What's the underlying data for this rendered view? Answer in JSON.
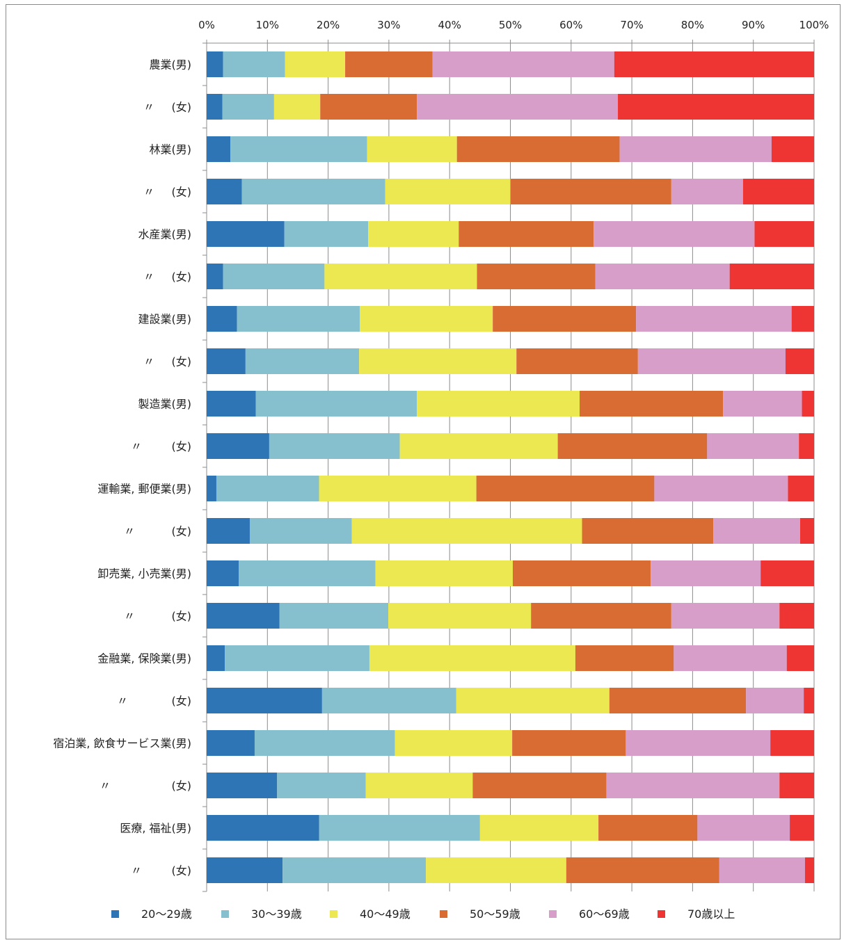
{
  "chart_data": {
    "type": "bar",
    "orientation": "horizontal",
    "stacked": "percent",
    "x_ticks": [
      "0%",
      "10%",
      "20%",
      "30%",
      "40%",
      "50%",
      "60%",
      "70%",
      "80%",
      "90%",
      "100%"
    ],
    "xlim": [
      0,
      100
    ],
    "grid": true,
    "legend_position": "bottom",
    "categories": [
      {
        "main": "農業(男)"
      },
      {
        "mark": "〃",
        "paren": "(女)",
        "gap": 0
      },
      {
        "main": "林業(男)"
      },
      {
        "mark": "〃",
        "paren": "(女)",
        "gap": 0
      },
      {
        "main": "水産業(男)"
      },
      {
        "mark": "〃",
        "paren": "(女)",
        "gap": 0
      },
      {
        "main": "建設業(男)"
      },
      {
        "mark": "〃",
        "paren": "(女)",
        "gap": 0
      },
      {
        "main": "製造業(男)"
      },
      {
        "mark": "〃",
        "paren": "(女)",
        "gap": 1
      },
      {
        "main": "運輸業, 郵便業(男)"
      },
      {
        "mark": "〃",
        "paren": "(女)",
        "gap": 2
      },
      {
        "main": "卸売業, 小売業(男)"
      },
      {
        "mark": "〃",
        "paren": "(女)",
        "gap": 2
      },
      {
        "main": "金融業, 保険業(男)"
      },
      {
        "mark": "〃",
        "paren": "(女)",
        "gap": 3
      },
      {
        "main": "宿泊業, 飲食サービス業(男)"
      },
      {
        "mark": "〃",
        "paren": "(女)",
        "gap": 4
      },
      {
        "main": "医療, 福祉(男)"
      },
      {
        "mark": "〃",
        "paren": "(女)",
        "gap": 1
      }
    ],
    "series": [
      {
        "name": "20〜29歳",
        "color": "#2e75b6",
        "values": [
          2.7,
          2.6,
          3.9,
          5.8,
          12.8,
          2.7,
          5.0,
          6.4,
          8.1,
          10.3,
          1.6,
          7.1,
          5.3,
          12.0,
          3.0,
          19.0,
          7.9,
          11.6,
          18.5,
          12.5
        ]
      },
      {
        "name": "30〜39歳",
        "color": "#86c0cf",
        "values": [
          10.2,
          8.5,
          22.5,
          23.6,
          13.8,
          16.7,
          20.2,
          18.7,
          26.5,
          21.5,
          16.9,
          16.8,
          22.5,
          17.9,
          23.8,
          22.1,
          23.1,
          14.6,
          26.5,
          23.6
        ]
      },
      {
        "name": "40〜49歳",
        "color": "#ebe851",
        "values": [
          9.9,
          7.6,
          14.8,
          20.6,
          14.9,
          25.1,
          21.9,
          25.9,
          26.8,
          26.0,
          25.9,
          37.9,
          22.6,
          23.5,
          33.9,
          25.2,
          19.3,
          17.6,
          19.5,
          23.1
        ]
      },
      {
        "name": "50〜59歳",
        "color": "#d86c33",
        "values": [
          14.4,
          15.9,
          26.8,
          26.5,
          22.2,
          19.5,
          23.6,
          20.0,
          23.6,
          24.6,
          29.3,
          21.6,
          22.7,
          23.1,
          16.2,
          22.5,
          18.7,
          22.0,
          16.3,
          25.2
        ]
      },
      {
        "name": "60〜69歳",
        "color": "#d69ec8",
        "values": [
          29.9,
          33.1,
          25.0,
          11.8,
          26.5,
          22.1,
          25.6,
          24.3,
          13.0,
          15.1,
          22.0,
          14.3,
          18.1,
          17.8,
          18.6,
          9.5,
          23.8,
          28.5,
          15.2,
          14.1
        ]
      },
      {
        "name": "70歳以上",
        "color": "#ef3434",
        "values": [
          32.9,
          32.3,
          7.0,
          11.7,
          9.8,
          13.9,
          3.7,
          4.7,
          2.0,
          2.5,
          4.3,
          2.3,
          8.8,
          5.7,
          4.5,
          1.7,
          7.2,
          5.7,
          4.0,
          1.5
        ]
      }
    ]
  }
}
